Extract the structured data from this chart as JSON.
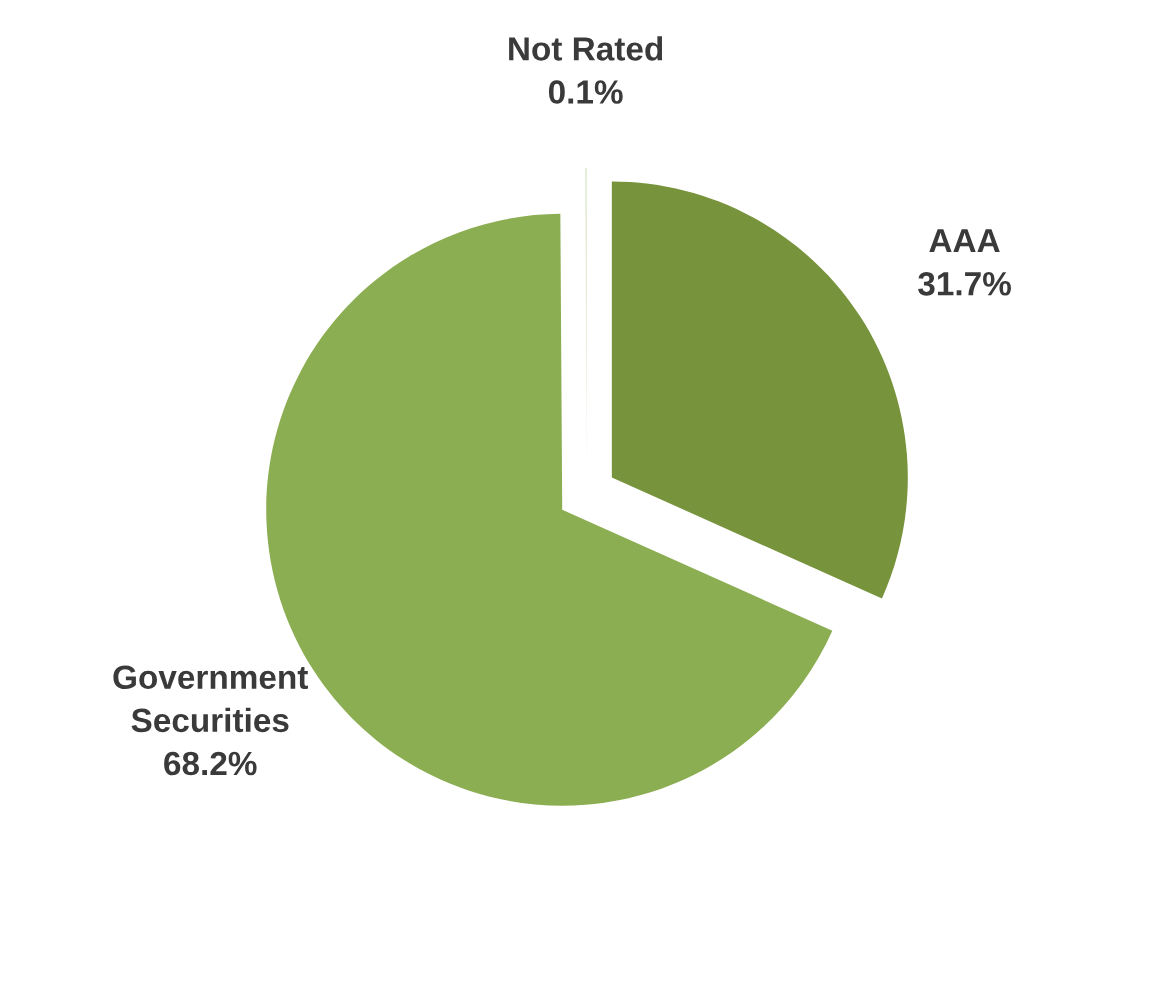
{
  "chart_data": {
    "type": "pie",
    "categories": [
      "AAA",
      "Government Securities",
      "Not Rated"
    ],
    "values": [
      31.7,
      68.2,
      0.1
    ],
    "colors": [
      "#77933c",
      "#8cae52",
      "#e4ecd6"
    ],
    "value_labels": [
      "31.7%",
      "68.2%",
      "0.1%"
    ]
  }
}
